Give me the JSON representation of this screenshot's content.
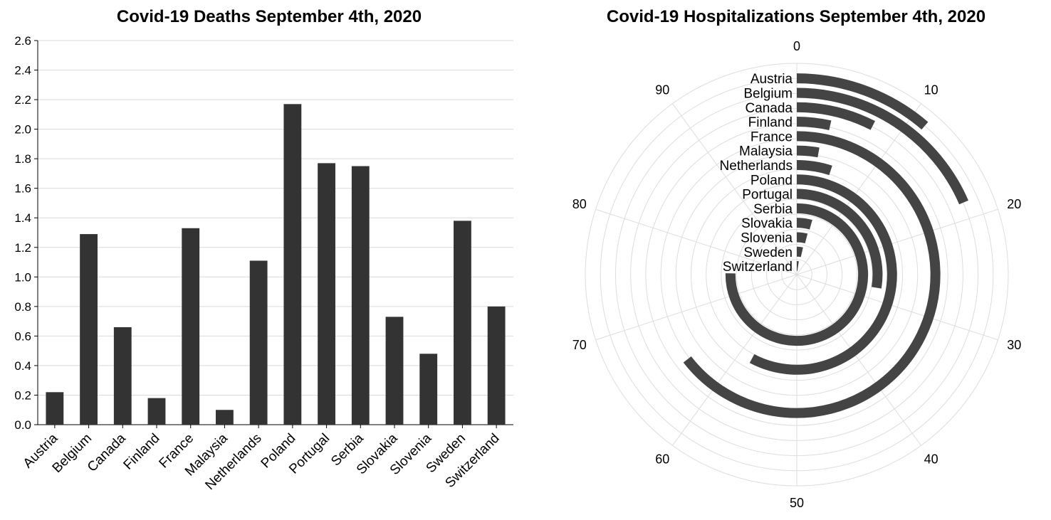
{
  "chart_data": [
    {
      "type": "bar",
      "title": "Covid-19 Deaths September 4th, 2020",
      "xlabel": "",
      "ylabel": "",
      "ylim": [
        0,
        2.6
      ],
      "yticks": [
        "0.0",
        "0.2",
        "0.4",
        "0.6",
        "0.8",
        "1.0",
        "1.2",
        "1.4",
        "1.6",
        "1.8",
        "2.0",
        "2.2",
        "2.4",
        "2.6"
      ],
      "grid": true,
      "color": "#333333",
      "categories": [
        "Austria",
        "Belgium",
        "Canada",
        "Finland",
        "France",
        "Malaysia",
        "Netherlands",
        "Poland",
        "Portugal",
        "Serbia",
        "Slovakia",
        "Slovenia",
        "Sweden",
        "Switzerland"
      ],
      "values": [
        0.22,
        1.29,
        0.66,
        0.18,
        1.33,
        0.1,
        1.11,
        2.17,
        1.77,
        1.75,
        0.73,
        0.48,
        1.38,
        0.8
      ]
    },
    {
      "type": "radial-bar",
      "title": "Covid-19 Hospitalizations September 4th, 2020",
      "range": [
        0,
        100
      ],
      "angular_ticks": [
        "0",
        "10",
        "20",
        "30",
        "40",
        "50",
        "60",
        "70",
        "80",
        "90"
      ],
      "grid": true,
      "color": "#444444",
      "categories": [
        "Austria",
        "Belgium",
        "Canada",
        "Finland",
        "France",
        "Malaysia",
        "Netherlands",
        "Poland",
        "Portugal",
        "Serbia",
        "Slovakia",
        "Slovenia",
        "Sweden",
        "Switzerland"
      ],
      "values": [
        11.3,
        18.5,
        7.5,
        3.5,
        64.5,
        2.8,
        5.0,
        57.8,
        27.6,
        75.3,
        4.4,
        4.1,
        3.6,
        2.4
      ]
    }
  ]
}
